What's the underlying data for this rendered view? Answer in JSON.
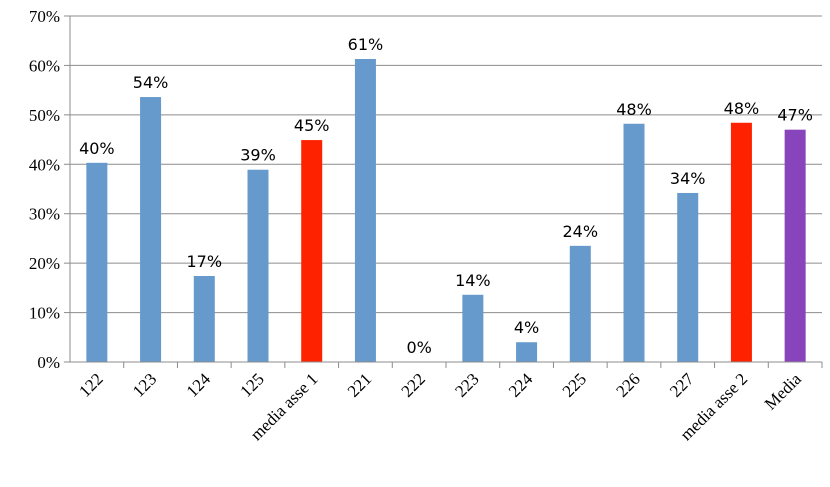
{
  "chart_data": {
    "type": "bar",
    "title": "",
    "xlabel": "",
    "ylabel": "",
    "ylim": [
      0,
      70
    ],
    "y_ticks": [
      "0%",
      "10%",
      "20%",
      "30%",
      "40%",
      "50%",
      "60%",
      "70%"
    ],
    "grid": true,
    "legend": "none",
    "categories": [
      "122",
      "123",
      "124",
      "125",
      "media asse 1",
      "221",
      "222",
      "223",
      "224",
      "225",
      "226",
      "227",
      "media asse 2",
      "Media"
    ],
    "values": [
      40.3,
      53.6,
      17.4,
      38.9,
      44.9,
      61.3,
      0,
      13.6,
      4.0,
      23.5,
      48.2,
      34.2,
      48.4,
      47.0
    ],
    "data_labels": [
      "40%",
      "54%",
      "17%",
      "39%",
      "45%",
      "61%",
      "0%",
      "14%",
      "4%",
      "24%",
      "48%",
      "34%",
      "48%",
      "47%"
    ],
    "colors": [
      "#6699cc",
      "#6699cc",
      "#6699cc",
      "#6699cc",
      "#ff2200",
      "#6699cc",
      "#6699cc",
      "#6699cc",
      "#6699cc",
      "#6699cc",
      "#6699cc",
      "#6699cc",
      "#ff2200",
      "#8844bb"
    ]
  }
}
